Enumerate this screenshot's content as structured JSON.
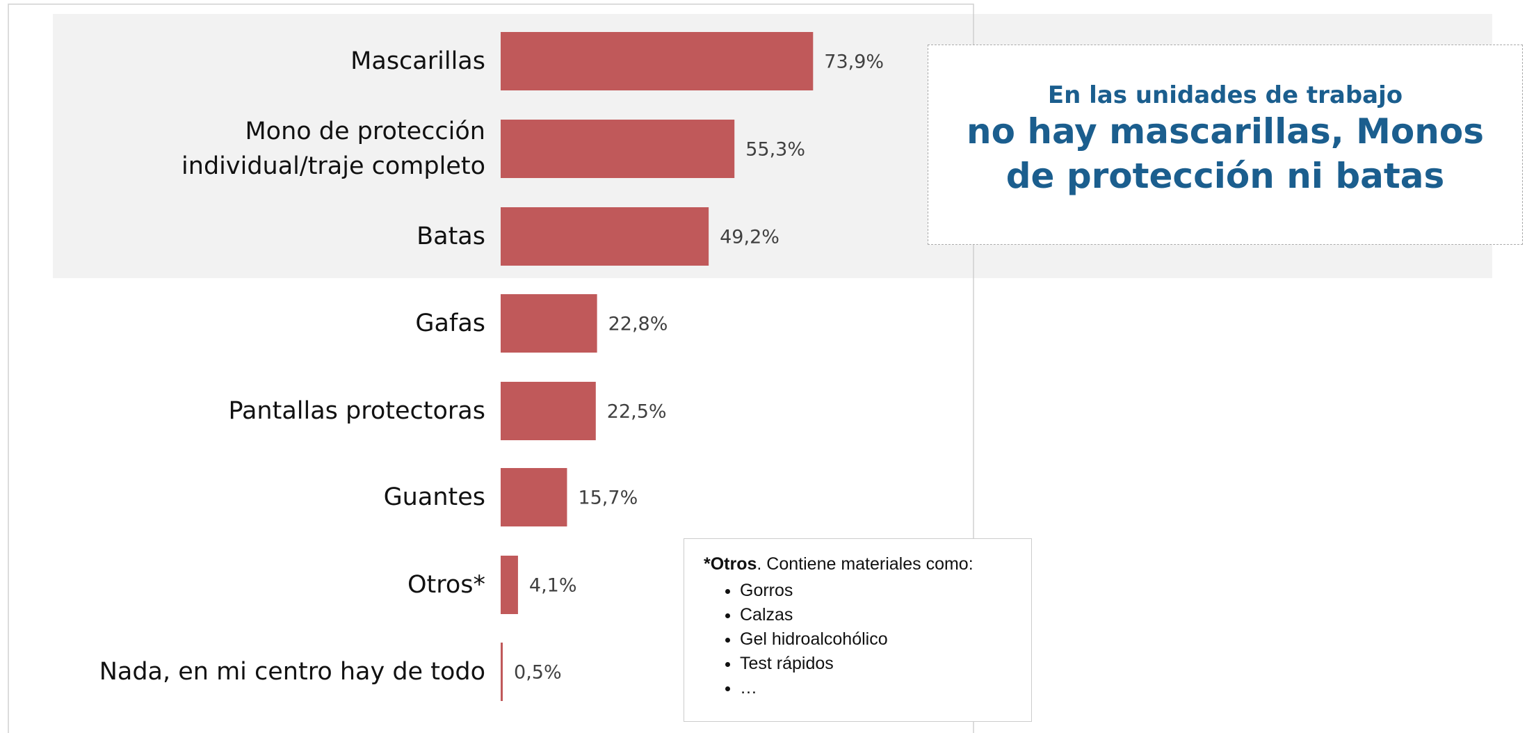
{
  "chart_data": {
    "type": "bar",
    "categories": [
      "Mascarillas",
      "Mono de protección\nindividual/traje completo",
      "Batas",
      "Gafas",
      "Pantallas protectoras",
      "Guantes",
      "Otros*",
      "Nada, en mi centro hay de todo"
    ],
    "values": [
      73.9,
      55.3,
      49.2,
      22.8,
      22.5,
      15.7,
      4.1,
      0.5
    ],
    "value_labels": [
      "73,9%",
      "55,3%",
      "49,2%",
      "22,8%",
      "22,5%",
      "15,7%",
      "4,1%",
      "0,5%"
    ],
    "color": "#c0595a"
  },
  "callout": {
    "subtitle": "En las unidades de trabajo",
    "headline": "no hay mascarillas, Monos de protección ni batas"
  },
  "note": {
    "title": "*Otros",
    "intro": ". Contiene materiales como:",
    "items": [
      "Gorros",
      "Calzas",
      "Gel hidroalcohólico",
      "Test rápidos",
      "…"
    ]
  }
}
